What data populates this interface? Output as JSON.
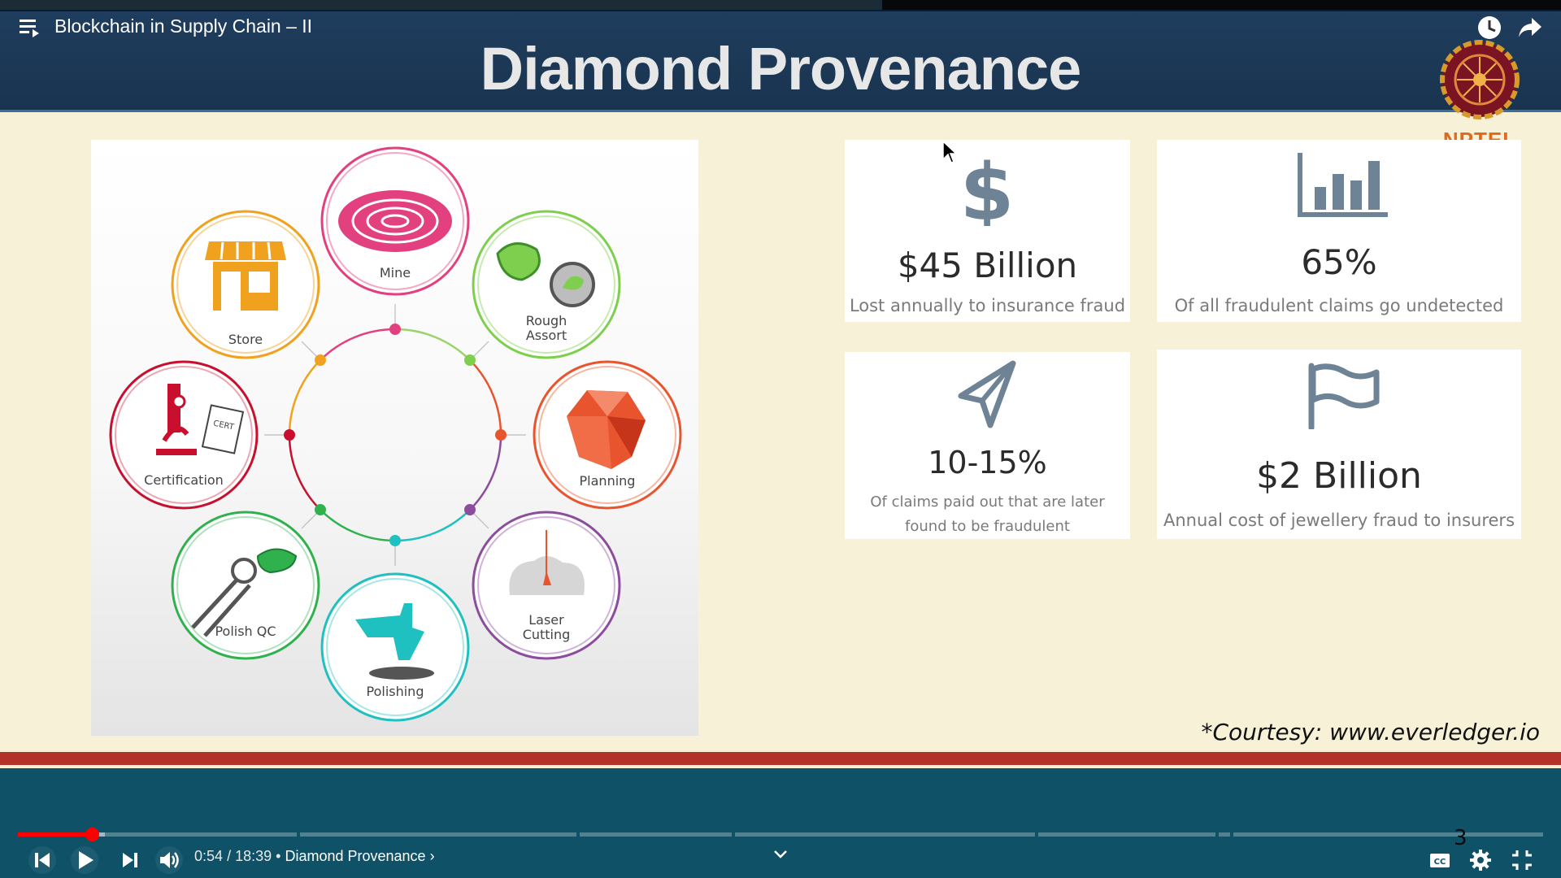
{
  "player": {
    "video_title": "Blockchain in Supply Chain – II",
    "time_current": "0:54",
    "time_total": "18:39",
    "chapter_title": "Diamond Provenance",
    "progress_fraction": 0.0483,
    "buffer_fraction": 0.057,
    "chapter_gaps_fraction": [
      0.183,
      0.366,
      0.468,
      0.667,
      0.785,
      0.795
    ],
    "icons": [
      "playlist-icon",
      "watch-later-icon",
      "share-icon",
      "previous-icon",
      "play-icon",
      "next-icon",
      "volume-icon",
      "chevron-down-icon",
      "captions-icon",
      "settings-icon",
      "exit-fullscreen-icon"
    ]
  },
  "slide": {
    "title": "Diamond Provenance",
    "logo_text": "NPTEL",
    "courtesy": "*Courtesy: www.everledger.io",
    "page_number": "3",
    "accent_red": "#b2322a",
    "header_blue": "#1f3d5e"
  },
  "cycle": {
    "stages": [
      {
        "label": "Mine",
        "color": "#e2407e"
      },
      {
        "label": "Rough Assort",
        "color": "#7fcf4e"
      },
      {
        "label": "Planning",
        "color": "#e8542e"
      },
      {
        "label": "Laser Cutting",
        "color": "#8b4d9c"
      },
      {
        "label": "Polishing",
        "color": "#1fc0c0"
      },
      {
        "label": "Polish QC",
        "color": "#2fb24d"
      },
      {
        "label": "Certification",
        "color": "#c8102e"
      },
      {
        "label": "Store",
        "color": "#f0a21e"
      }
    ]
  },
  "stats": [
    {
      "icon": "dollar-icon",
      "value": "$45 Billion",
      "desc": "Lost annually to insurance fraud"
    },
    {
      "icon": "bar-chart-icon",
      "value": "65%",
      "desc": "Of all fraudulent claims go undetected"
    },
    {
      "icon": "paper-plane-icon",
      "value": "10-15%",
      "desc": "Of claims paid out that are later found to be fraudulent"
    },
    {
      "icon": "flag-icon",
      "value": "$2 Billion",
      "desc": "Annual cost of jewellery fraud to insurers"
    }
  ]
}
